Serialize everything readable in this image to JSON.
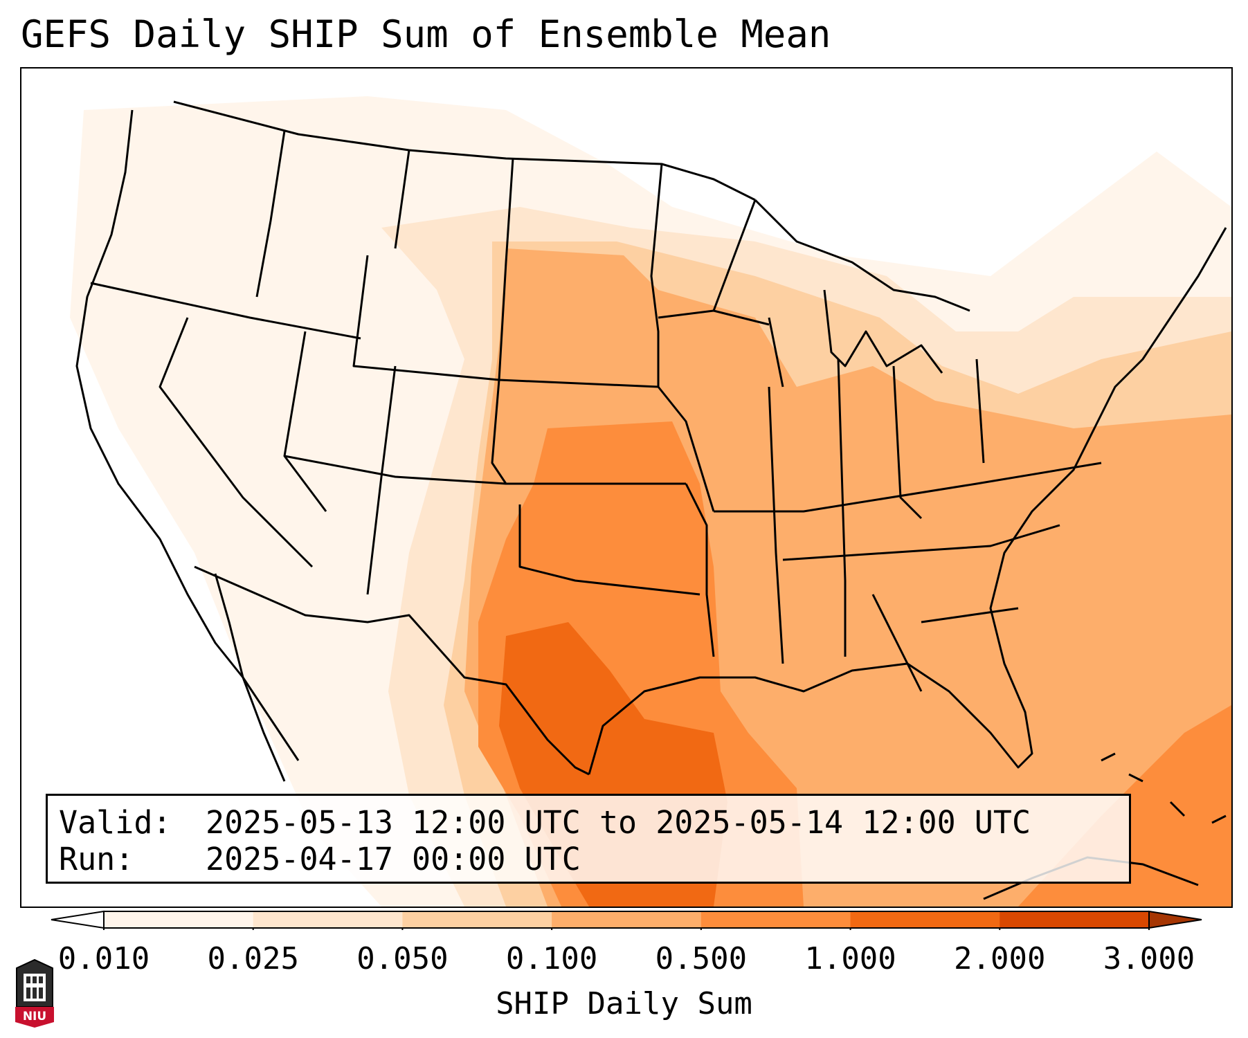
{
  "title": "GEFS Daily SHIP Sum of Ensemble Mean",
  "info": {
    "valid_label": "Valid:",
    "valid_value": "2025-05-13 12:00 UTC to 2025-05-14 12:00 UTC",
    "run_label": "Run:",
    "run_value": "2025-04-17 00:00 UTC"
  },
  "colorbar": {
    "label": "SHIP Daily Sum",
    "ticks": [
      "0.010",
      "0.025",
      "0.050",
      "0.100",
      "0.500",
      "1.000",
      "2.000",
      "3.000"
    ],
    "colors": [
      "#fff5eb",
      "#fee6ce",
      "#fdd0a2",
      "#fdae6b",
      "#fd8d3c",
      "#f16913",
      "#d94801"
    ],
    "under_color": "#ffffff",
    "over_color": "#a63603",
    "extend": "both"
  },
  "logo": {
    "text": "NIU",
    "icon": "niu-logo-icon"
  },
  "map": {
    "domain": "Continental United States, southern Canada, northern Mexico, Gulf of Mexico and western Atlantic",
    "max_region": "Texas and western Gulf of Mexico",
    "max_category": "1.000"
  }
}
